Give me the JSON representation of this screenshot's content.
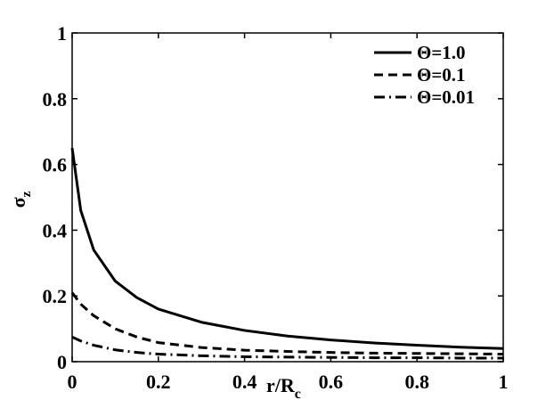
{
  "chart_data": {
    "type": "line",
    "title": "",
    "xlabel": "r/R",
    "xlabel_subscript": "c",
    "ylabel": "σ",
    "ylabel_subscript": "z",
    "xlim": [
      0,
      1
    ],
    "ylim": [
      0,
      1
    ],
    "xticks": [
      0,
      0.2,
      0.4,
      0.6,
      0.8,
      1
    ],
    "xtick_labels": [
      "0",
      "0.2",
      "0.4",
      "0.6",
      "0.8",
      "1"
    ],
    "yticks": [
      0,
      0.2,
      0.4,
      0.6,
      0.8,
      1
    ],
    "ytick_labels": [
      "0",
      "0.2",
      "0.4",
      "0.6",
      "0.8",
      "1"
    ],
    "grid": false,
    "legend_position": "top-right",
    "line_color": "#000000",
    "x": [
      0,
      0.02,
      0.05,
      0.1,
      0.15,
      0.2,
      0.3,
      0.4,
      0.5,
      0.6,
      0.7,
      0.8,
      0.9,
      1.0
    ],
    "series": [
      {
        "name": "Θ=1.0",
        "style": "solid",
        "values": [
          0.65,
          0.46,
          0.34,
          0.245,
          0.195,
          0.16,
          0.12,
          0.095,
          0.078,
          0.066,
          0.057,
          0.05,
          0.044,
          0.04
        ]
      },
      {
        "name": "Θ=0.1",
        "style": "dashed",
        "values": [
          0.21,
          0.175,
          0.14,
          0.1,
          0.075,
          0.058,
          0.043,
          0.035,
          0.031,
          0.028,
          0.026,
          0.025,
          0.024,
          0.023
        ]
      },
      {
        "name": "Θ=0.01",
        "style": "dashdot",
        "values": [
          0.075,
          0.063,
          0.05,
          0.036,
          0.028,
          0.023,
          0.018,
          0.015,
          0.014,
          0.013,
          0.012,
          0.012,
          0.011,
          0.011
        ]
      }
    ]
  }
}
